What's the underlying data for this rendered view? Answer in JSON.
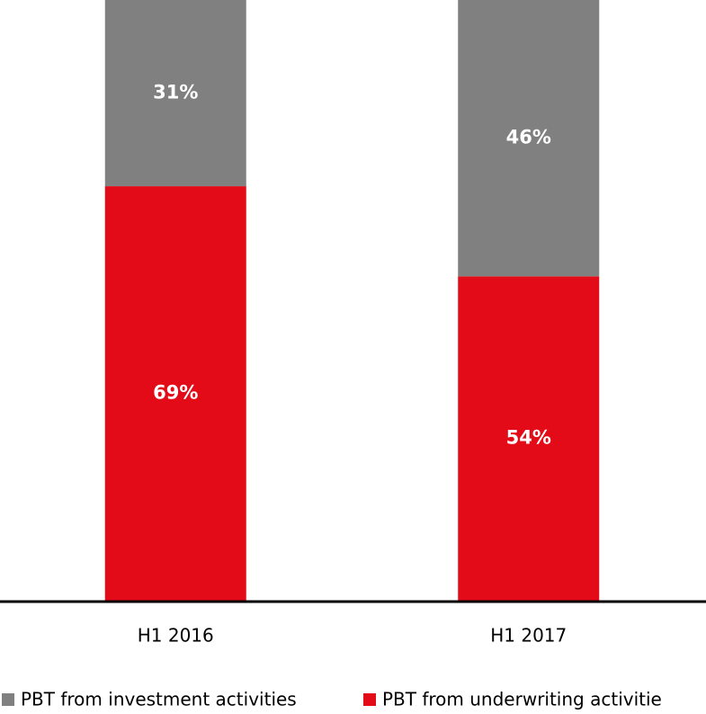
{
  "chart_data": {
    "type": "stacked_bar",
    "categories": [
      "H1 2016",
      "H1 2017"
    ],
    "series": [
      {
        "name": "PBT from investment activities",
        "color": "#808080",
        "values": [
          31,
          46
        ],
        "value_labels": [
          "31%",
          "46%"
        ]
      },
      {
        "name": "PBT from underwriting activitie",
        "color": "#e30b17",
        "values": [
          69,
          54
        ],
        "value_labels": [
          "69%",
          "54%"
        ]
      }
    ],
    "ylim": [
      0,
      100
    ],
    "legend": "bottom"
  }
}
